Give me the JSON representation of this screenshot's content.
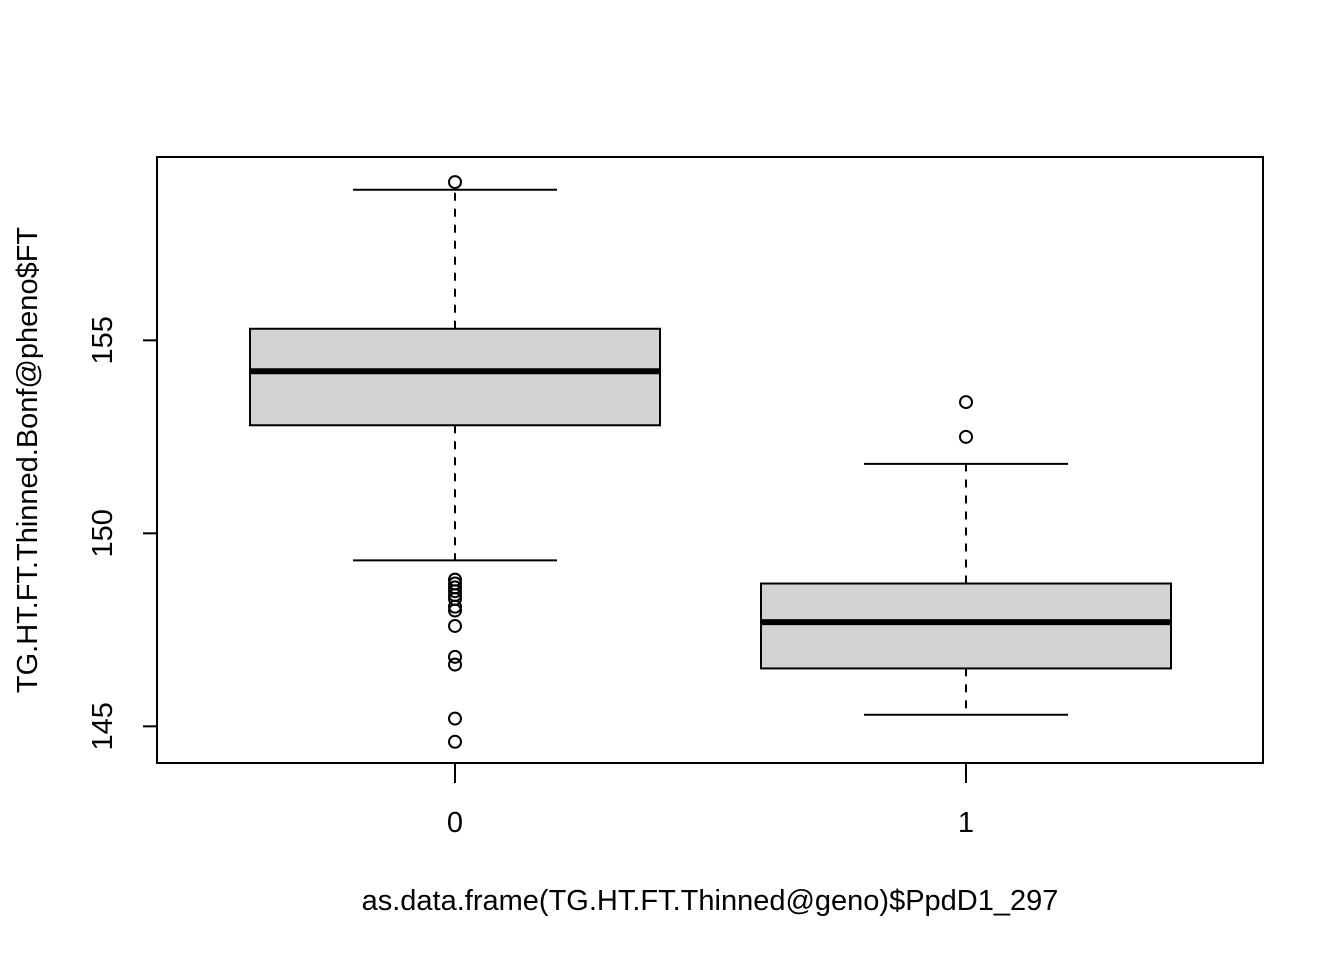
{
  "chart_data": {
    "type": "box",
    "title": "",
    "xlabel": "as.data.frame(TG.HT.FT.Thinned@geno)$PpdD1_297",
    "ylabel": "TG.HT.FT.Thinned.Bonf@pheno$FT",
    "ylim": [
      144.05,
      159.75
    ],
    "yticks": [
      "145",
      "150",
      "155"
    ],
    "grid": false,
    "legend": "none",
    "box_fill": "#d3d3d3",
    "groups": [
      {
        "label": "0",
        "whisker_low": 149.3,
        "q1": 152.8,
        "median": 154.2,
        "q3": 155.3,
        "whisker_high": 158.9,
        "outliers": [
          159.1,
          148.8,
          148.7,
          148.6,
          148.5,
          148.4,
          148.3,
          148.1,
          148.0,
          147.6,
          146.8,
          146.6,
          145.2,
          144.6
        ]
      },
      {
        "label": "1",
        "whisker_low": 145.3,
        "q1": 146.5,
        "median": 147.7,
        "q3": 148.7,
        "whisker_high": 151.8,
        "outliers": [
          153.4,
          152.5
        ]
      }
    ]
  }
}
